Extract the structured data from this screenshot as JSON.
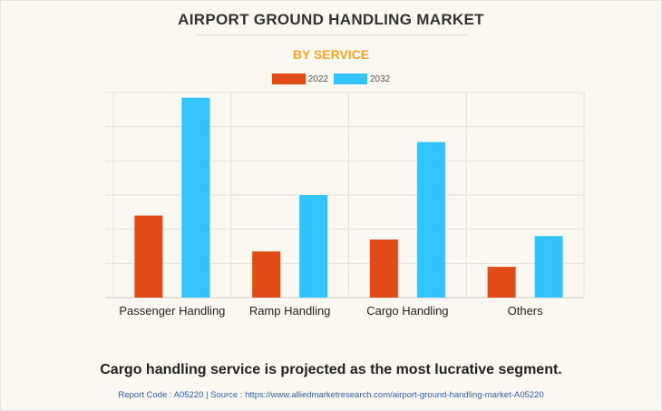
{
  "colors": {
    "accent": "#f5a623",
    "series_2022": "#e24a17",
    "series_2032": "#33c4ff"
  },
  "chart_data": {
    "type": "bar",
    "title": "AIRPORT GROUND HANDLING MARKET",
    "subtitle": "BY SERVICE",
    "categories": [
      "Passenger Handling",
      "Ramp Handling",
      "Cargo Handling",
      "Others"
    ],
    "series": [
      {
        "name": "2022",
        "values": [
          24,
          13.5,
          17,
          9
        ]
      },
      {
        "name": "2032",
        "values": [
          58.5,
          30,
          45.5,
          18
        ]
      }
    ],
    "ylim": [
      0,
      60
    ],
    "grid": true,
    "legend": "top-center",
    "xlabel": "",
    "ylabel": ""
  },
  "caption": "Cargo handling service is projected as the most lucrative segment.",
  "source_line": "Report Code : A05220  |  Source : https://www.alliedmarketresearch.com/airport-ground-handling-market-A05220"
}
